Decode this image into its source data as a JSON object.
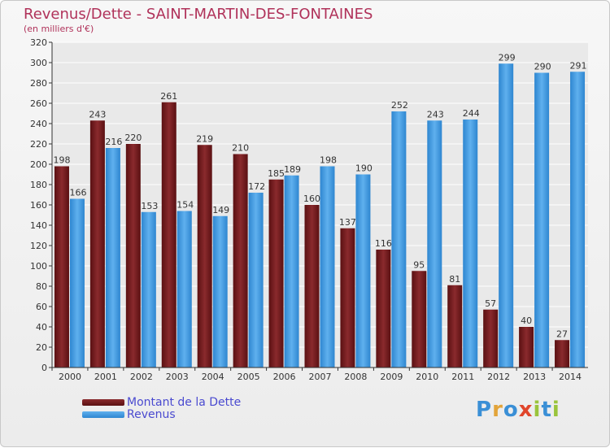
{
  "header": {
    "title": "Revenus/Dette - SAINT-MARTIN-DES-FONTAINES",
    "subtitle": "(en milliers d'€)"
  },
  "colors": {
    "title": "#b0325a",
    "dette": "#7a1f22",
    "revenus": "#3d95dc"
  },
  "legend": {
    "dette_label": "Montant de la Dette",
    "revenus_label": "Revenus"
  },
  "logo": {
    "letters": [
      "P",
      "r",
      "o",
      "x",
      "i",
      "t",
      "i"
    ],
    "colors": [
      "#3a8fd6",
      "#e2a43a",
      "#3a8fd6",
      "#e0452b",
      "#9ac43c",
      "#3a8fd6",
      "#9ac43c"
    ]
  },
  "chart_data": {
    "type": "bar",
    "title": "Revenus/Dette - SAINT-MARTIN-DES-FONTAINES",
    "ylabel": "",
    "xlabel": "",
    "ylim": [
      0,
      320
    ],
    "y_ticks": [
      0,
      20,
      40,
      60,
      80,
      100,
      120,
      140,
      160,
      180,
      200,
      220,
      240,
      260,
      280,
      300,
      320
    ],
    "grid": true,
    "legend_position": "bottom-left",
    "categories": [
      "2000",
      "2001",
      "2002",
      "2003",
      "2004",
      "2005",
      "2006",
      "2007",
      "2008",
      "2009",
      "2010",
      "2011",
      "2012",
      "2013",
      "2014"
    ],
    "series": [
      {
        "name": "Montant de la Dette",
        "values": [
          198,
          243,
          220,
          261,
          219,
          210,
          185,
          160,
          137,
          116,
          95,
          81,
          57,
          40,
          27
        ]
      },
      {
        "name": "Revenus",
        "values": [
          166,
          216,
          153,
          154,
          149,
          172,
          189,
          198,
          190,
          252,
          243,
          244,
          299,
          290,
          291
        ]
      }
    ]
  }
}
